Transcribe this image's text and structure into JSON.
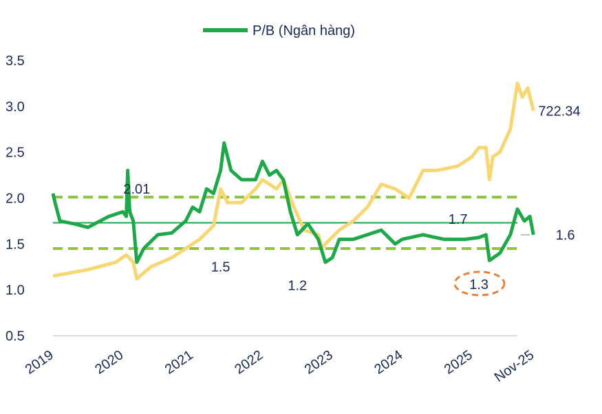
{
  "chart_data": {
    "type": "line",
    "title": "",
    "legend": {
      "position": "top",
      "entries": [
        "P/B (Ngân hàng)"
      ]
    },
    "ylim": [
      0.5,
      3.5
    ],
    "yticks": [
      "0.5",
      "1.0",
      "1.5",
      "2.0",
      "2.5",
      "3.0",
      "3.5"
    ],
    "xticks": [
      "2019",
      "2020",
      "2021",
      "2022",
      "2023",
      "2024",
      "2025",
      "Nov-25"
    ],
    "xtick_values": [
      2019,
      2020,
      2021,
      2022,
      2023,
      2024,
      2025,
      2025.88
    ],
    "grid": false,
    "colors": {
      "pb": "#1fa84a",
      "index": "#f7d774",
      "band": "#8cc63f",
      "mean": "#1fa84a",
      "highlight": "#e8813a",
      "text": "#1a2a55"
    },
    "series": [
      {
        "name": "P/B (Ngân hàng)",
        "x": [
          2019.0,
          2019.03,
          2019.1,
          2019.3,
          2019.5,
          2019.8,
          2020.0,
          2020.05,
          2020.07,
          2020.1,
          2020.15,
          2020.2,
          2020.3,
          2020.5,
          2020.7,
          2020.9,
          2021.0,
          2021.1,
          2021.2,
          2021.3,
          2021.4,
          2021.45,
          2021.55,
          2021.7,
          2021.9,
          2022.0,
          2022.1,
          2022.2,
          2022.3,
          2022.4,
          2022.5,
          2022.65,
          2022.8,
          2022.9,
          2023.0,
          2023.1,
          2023.3,
          2023.5,
          2023.7,
          2023.9,
          2024.0,
          2024.3,
          2024.6,
          2024.9,
          2025.1,
          2025.2,
          2025.25,
          2025.4,
          2025.55,
          2025.65,
          2025.75,
          2025.83,
          2025.88
        ],
        "y": [
          2.05,
          1.95,
          1.75,
          1.72,
          1.68,
          1.8,
          1.85,
          1.8,
          2.3,
          1.85,
          1.75,
          1.3,
          1.45,
          1.6,
          1.62,
          1.75,
          1.9,
          1.85,
          2.1,
          2.05,
          2.3,
          2.6,
          2.3,
          2.2,
          2.2,
          2.4,
          2.25,
          2.3,
          2.2,
          1.85,
          1.6,
          1.72,
          1.55,
          1.3,
          1.35,
          1.55,
          1.55,
          1.6,
          1.65,
          1.5,
          1.55,
          1.6,
          1.55,
          1.55,
          1.57,
          1.6,
          1.32,
          1.4,
          1.6,
          1.88,
          1.75,
          1.8,
          1.6
        ]
      },
      {
        "x": [
          2019.0,
          2019.5,
          2019.9,
          2020.05,
          2020.15,
          2020.2,
          2020.4,
          2020.7,
          2020.9,
          2021.1,
          2021.3,
          2021.4,
          2021.5,
          2021.7,
          2021.9,
          2022.0,
          2022.2,
          2022.3,
          2022.45,
          2022.6,
          2022.8,
          2022.85,
          2022.9,
          2023.1,
          2023.3,
          2023.5,
          2023.7,
          2023.9,
          2024.1,
          2024.3,
          2024.5,
          2024.8,
          2025.0,
          2025.1,
          2025.2,
          2025.25,
          2025.3,
          2025.4,
          2025.55,
          2025.65,
          2025.72,
          2025.8,
          2025.88
        ],
        "y": [
          1.15,
          1.22,
          1.3,
          1.38,
          1.3,
          1.12,
          1.25,
          1.35,
          1.45,
          1.55,
          1.7,
          2.1,
          1.95,
          1.95,
          2.1,
          2.2,
          2.1,
          2.2,
          1.9,
          1.65,
          1.6,
          1.45,
          1.5,
          1.65,
          1.75,
          1.9,
          2.15,
          2.1,
          2.0,
          2.3,
          2.3,
          2.35,
          2.45,
          2.55,
          2.55,
          2.2,
          2.45,
          2.5,
          2.75,
          3.25,
          3.1,
          3.2,
          2.95
        ]
      }
    ],
    "reference_lines": [
      {
        "value": 2.01,
        "style": "dashed"
      },
      {
        "value": 1.73,
        "style": "solid"
      },
      {
        "value": 1.45,
        "style": "dashed"
      }
    ],
    "annotations": [
      {
        "text": "2.01",
        "x": 2020.2,
        "y": 2.1
      },
      {
        "text": "1.5",
        "x": 2021.4,
        "y": 1.25
      },
      {
        "text": "1.2",
        "x": 2022.5,
        "y": 1.05
      },
      {
        "text": "1.7",
        "x": 2024.8,
        "y": 1.77
      },
      {
        "text": "1.3",
        "x": 2025.1,
        "y": 1.06,
        "highlight": true
      },
      {
        "text": "722.34",
        "x": 2025.95,
        "y": 2.95
      },
      {
        "text": "1.6",
        "x": 2026.2,
        "y": 1.6
      }
    ]
  }
}
